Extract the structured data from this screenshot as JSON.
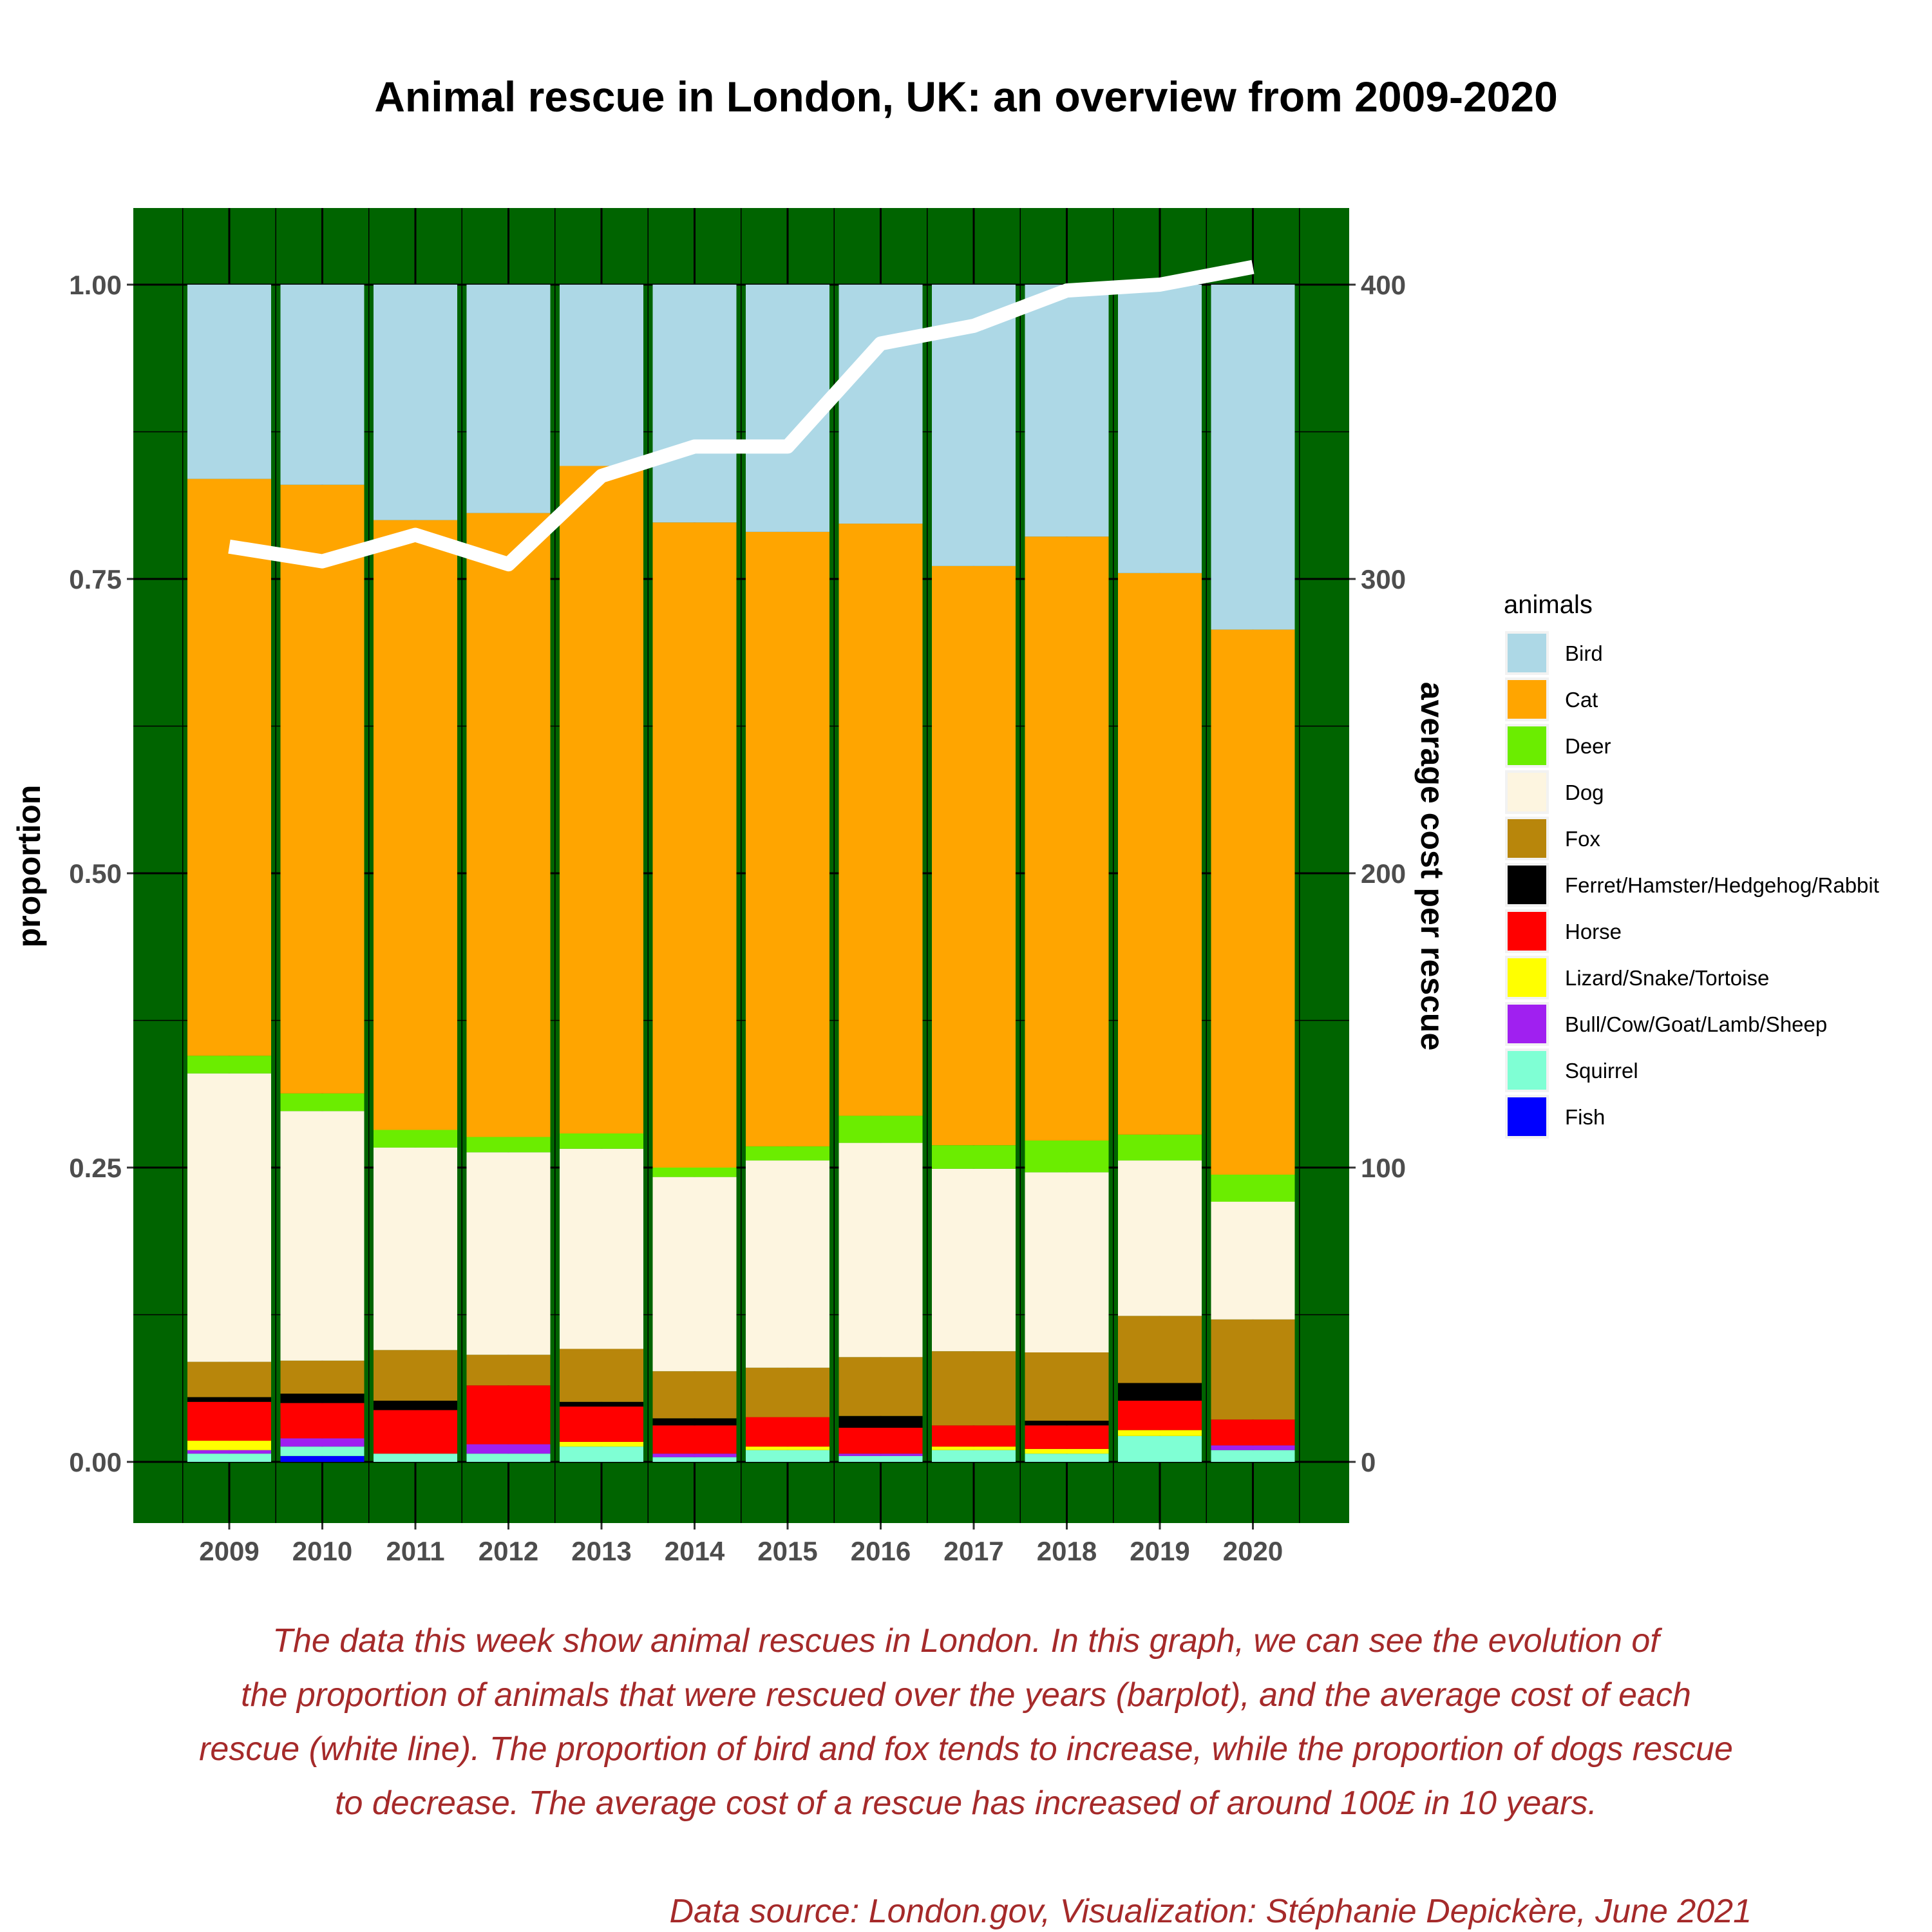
{
  "chart_data": {
    "type": "bar",
    "stacked": true,
    "title": "Animal rescue in London, UK: an overview from 2009-2020",
    "ylabel": "proportion",
    "y2label": "average cost per rescue",
    "ylim": [
      0,
      1
    ],
    "y2lim": [
      0,
      400
    ],
    "yticks": [
      "0.00",
      "0.25",
      "0.50",
      "0.75",
      "1.00"
    ],
    "y2ticks": [
      "0",
      "100",
      "200",
      "300",
      "400"
    ],
    "panel_background": "#006400",
    "categories": [
      "2009",
      "2010",
      "2011",
      "2012",
      "2013",
      "2014",
      "2015",
      "2016",
      "2017",
      "2018",
      "2019",
      "2020"
    ],
    "legend_title": "animals",
    "legend_position": "right",
    "series": [
      {
        "name": "Fish",
        "color": "#0000ff",
        "values": [
          0.0,
          0.005,
          0.0,
          0.0,
          0.0,
          0.0,
          0.0,
          0.0,
          0.0,
          0.0,
          0.0,
          0.0
        ]
      },
      {
        "name": "Squirrel",
        "color": "#7fffd4",
        "values": [
          0.007,
          0.008,
          0.007,
          0.007,
          0.013,
          0.004,
          0.01,
          0.005,
          0.01,
          0.007,
          0.022,
          0.01
        ]
      },
      {
        "name": "Bull/Cow/Goat/Lamb/Sheep",
        "color": "#a020f0",
        "values": [
          0.003,
          0.007,
          0.0,
          0.008,
          0.0,
          0.003,
          0.0,
          0.002,
          0.0,
          0.0,
          0.0,
          0.004
        ]
      },
      {
        "name": "Lizard/Snake/Tortoise",
        "color": "#ffff00",
        "values": [
          0.008,
          0.0,
          0.0,
          0.0,
          0.004,
          0.0,
          0.003,
          0.0,
          0.003,
          0.004,
          0.005,
          0.0
        ]
      },
      {
        "name": "Horse",
        "color": "#ff0000",
        "values": [
          0.033,
          0.03,
          0.037,
          0.05,
          0.03,
          0.024,
          0.025,
          0.022,
          0.018,
          0.02,
          0.025,
          0.022
        ]
      },
      {
        "name": "Ferret/Hamster/Hedgehog/Rabbit",
        "color": "#000000",
        "values": [
          0.004,
          0.008,
          0.008,
          0.0,
          0.004,
          0.006,
          0.0,
          0.01,
          0.0,
          0.004,
          0.015,
          0.0
        ]
      },
      {
        "name": "Fox",
        "color": "#b8860b",
        "values": [
          0.03,
          0.028,
          0.043,
          0.026,
          0.045,
          0.04,
          0.042,
          0.05,
          0.063,
          0.058,
          0.057,
          0.085
        ]
      },
      {
        "name": "Dog",
        "color": "#fdf5e0",
        "values": [
          0.245,
          0.212,
          0.172,
          0.172,
          0.17,
          0.165,
          0.176,
          0.182,
          0.155,
          0.153,
          0.132,
          0.1
        ]
      },
      {
        "name": "Deer",
        "color": "#6bed00",
        "values": [
          0.015,
          0.015,
          0.015,
          0.013,
          0.013,
          0.008,
          0.012,
          0.023,
          0.02,
          0.027,
          0.022,
          0.023
        ]
      },
      {
        "name": "Cat",
        "color": "#ffa500",
        "values": [
          0.49,
          0.517,
          0.518,
          0.53,
          0.567,
          0.548,
          0.522,
          0.503,
          0.492,
          0.513,
          0.477,
          0.463
        ]
      },
      {
        "name": "Bird",
        "color": "#add8e6",
        "values": [
          0.165,
          0.17,
          0.2,
          0.194,
          0.154,
          0.202,
          0.21,
          0.203,
          0.239,
          0.214,
          0.245,
          0.293
        ]
      }
    ],
    "legend_order": [
      "Bird",
      "Cat",
      "Deer",
      "Dog",
      "Fox",
      "Ferret/Hamster/Hedgehog/Rabbit",
      "Horse",
      "Lizard/Snake/Tortoise",
      "Bull/Cow/Goat/Lamb/Sheep",
      "Squirrel",
      "Fish"
    ],
    "line": {
      "axis": "y2",
      "color": "#ffffff",
      "values": [
        311,
        306,
        315,
        305,
        335,
        345,
        345,
        380,
        386,
        398,
        400,
        406
      ]
    }
  },
  "caption": {
    "lines": [
      "The data this week show animal rescues in London. In this graph, we can see the evolution of",
      "the proportion of animals that were rescued over the years (barplot), and the average cost of each",
      "rescue (white line). The proportion of bird and fox tends to increase, while the proportion of dogs rescue",
      "to decrease. The average cost of a rescue has increased of around 100£ in 10 years."
    ],
    "source": "Data source:  London.gov, Visualization: Stéphanie Depickère, June 2021"
  }
}
